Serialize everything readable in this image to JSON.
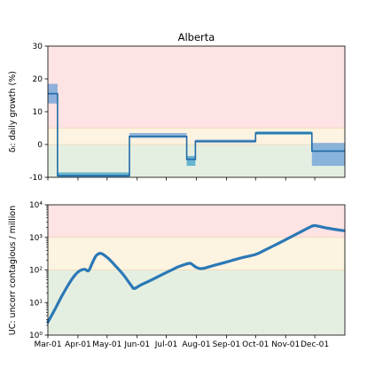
{
  "chart_data": [
    {
      "type": "line",
      "title": "Alberta",
      "ylabel": "δᵢ: daily growth (%)",
      "ylim": [
        -10,
        30
      ],
      "yticks": [
        -10,
        0,
        10,
        20,
        30
      ],
      "x_range": [
        "2020-03-01",
        "2021-01-01"
      ],
      "xtick_dates": [
        "2020-03-01",
        "2020-04-01",
        "2020-05-01",
        "2020-06-01",
        "2020-07-01",
        "2020-08-01",
        "2020-09-01",
        "2020-10-01",
        "2020-11-01",
        "2020-12-01"
      ],
      "xtick_labels_shown": false,
      "bands": [
        {
          "from": 5,
          "to": 30,
          "color": "#fde3e3"
        },
        {
          "from": 0,
          "to": 5,
          "color": "#fdf3e1"
        },
        {
          "from": -10,
          "to": 0,
          "color": "#e5efe1"
        }
      ],
      "series": [
        {
          "line_color": "#1f6aa5",
          "band_colors": [
            "#6a9fd8",
            "#3fa0c8"
          ],
          "segments": [
            {
              "start": "2020-03-01",
              "end": "2020-03-11",
              "value": 15.5,
              "low": 12.5,
              "high": 18.5
            },
            {
              "start": "2020-03-11",
              "end": "2020-05-24",
              "value": -9.5,
              "low": -10,
              "high": -8.5
            },
            {
              "start": "2020-05-24",
              "end": "2020-07-22",
              "value": 2.5,
              "low": 2,
              "high": 3.5
            },
            {
              "start": "2020-07-22",
              "end": "2020-07-31",
              "value": -4.5,
              "low": -6.5,
              "high": -3.5
            },
            {
              "start": "2020-07-31",
              "end": "2020-10-01",
              "value": 1,
              "low": 0.5,
              "high": 1.5
            },
            {
              "start": "2020-10-01",
              "end": "2020-11-28",
              "value": 3.5,
              "low": 3,
              "high": 4
            },
            {
              "start": "2020-11-28",
              "end": "2021-01-01",
              "value": -2,
              "low": -6.5,
              "high": 0.5
            }
          ]
        }
      ]
    },
    {
      "type": "line",
      "ylabel": "UC: uncorr contagious / million",
      "y_scale": "log",
      "ylim": [
        1,
        10000
      ],
      "yticks": [
        1,
        10,
        100,
        1000,
        10000
      ],
      "ytick_labels": [
        "10⁰",
        "10¹",
        "10²",
        "10³",
        "10⁴"
      ],
      "x_range": [
        "2020-03-01",
        "2021-01-01"
      ],
      "xtick_dates": [
        "2020-03-01",
        "2020-04-01",
        "2020-05-01",
        "2020-06-01",
        "2020-07-01",
        "2020-08-01",
        "2020-09-01",
        "2020-10-01",
        "2020-11-01",
        "2020-12-01"
      ],
      "xtick_labels": [
        "Mar-01",
        "Apr-01",
        "May-01",
        "Jun-01",
        "Jul-01",
        "Aug-01",
        "Sep-01",
        "Oct-01",
        "Nov-01",
        "Dec-01"
      ],
      "bands": [
        {
          "from": 1000,
          "to": 10000,
          "color": "#fde3e3"
        },
        {
          "from": 100,
          "to": 1000,
          "color": "#fdf3e1"
        },
        {
          "from": 1,
          "to": 100,
          "color": "#e5efe1"
        }
      ],
      "series": [
        {
          "line_color": "#2b78b6",
          "x": [
            "2020-03-01",
            "2020-03-08",
            "2020-03-15",
            "2020-03-22",
            "2020-03-29",
            "2020-04-03",
            "2020-04-08",
            "2020-04-12",
            "2020-04-16",
            "2020-04-20",
            "2020-04-25",
            "2020-05-02",
            "2020-05-10",
            "2020-05-18",
            "2020-05-26",
            "2020-05-29",
            "2020-06-05",
            "2020-06-15",
            "2020-06-25",
            "2020-07-05",
            "2020-07-15",
            "2020-07-25",
            "2020-07-28",
            "2020-08-01",
            "2020-08-05",
            "2020-08-10",
            "2020-08-20",
            "2020-09-01",
            "2020-09-15",
            "2020-10-01",
            "2020-10-10",
            "2020-10-20",
            "2020-11-01",
            "2020-11-15",
            "2020-11-25",
            "2020-11-30",
            "2020-12-05",
            "2020-12-15",
            "2020-12-31"
          ],
          "y": [
            2.5,
            6,
            15,
            35,
            70,
            95,
            105,
            95,
            170,
            280,
            320,
            230,
            130,
            70,
            33,
            27,
            35,
            48,
            68,
            95,
            130,
            160,
            145,
            120,
            110,
            115,
            140,
            175,
            230,
            300,
            400,
            560,
            850,
            1400,
            2000,
            2300,
            2200,
            1900,
            1600
          ]
        }
      ]
    }
  ]
}
